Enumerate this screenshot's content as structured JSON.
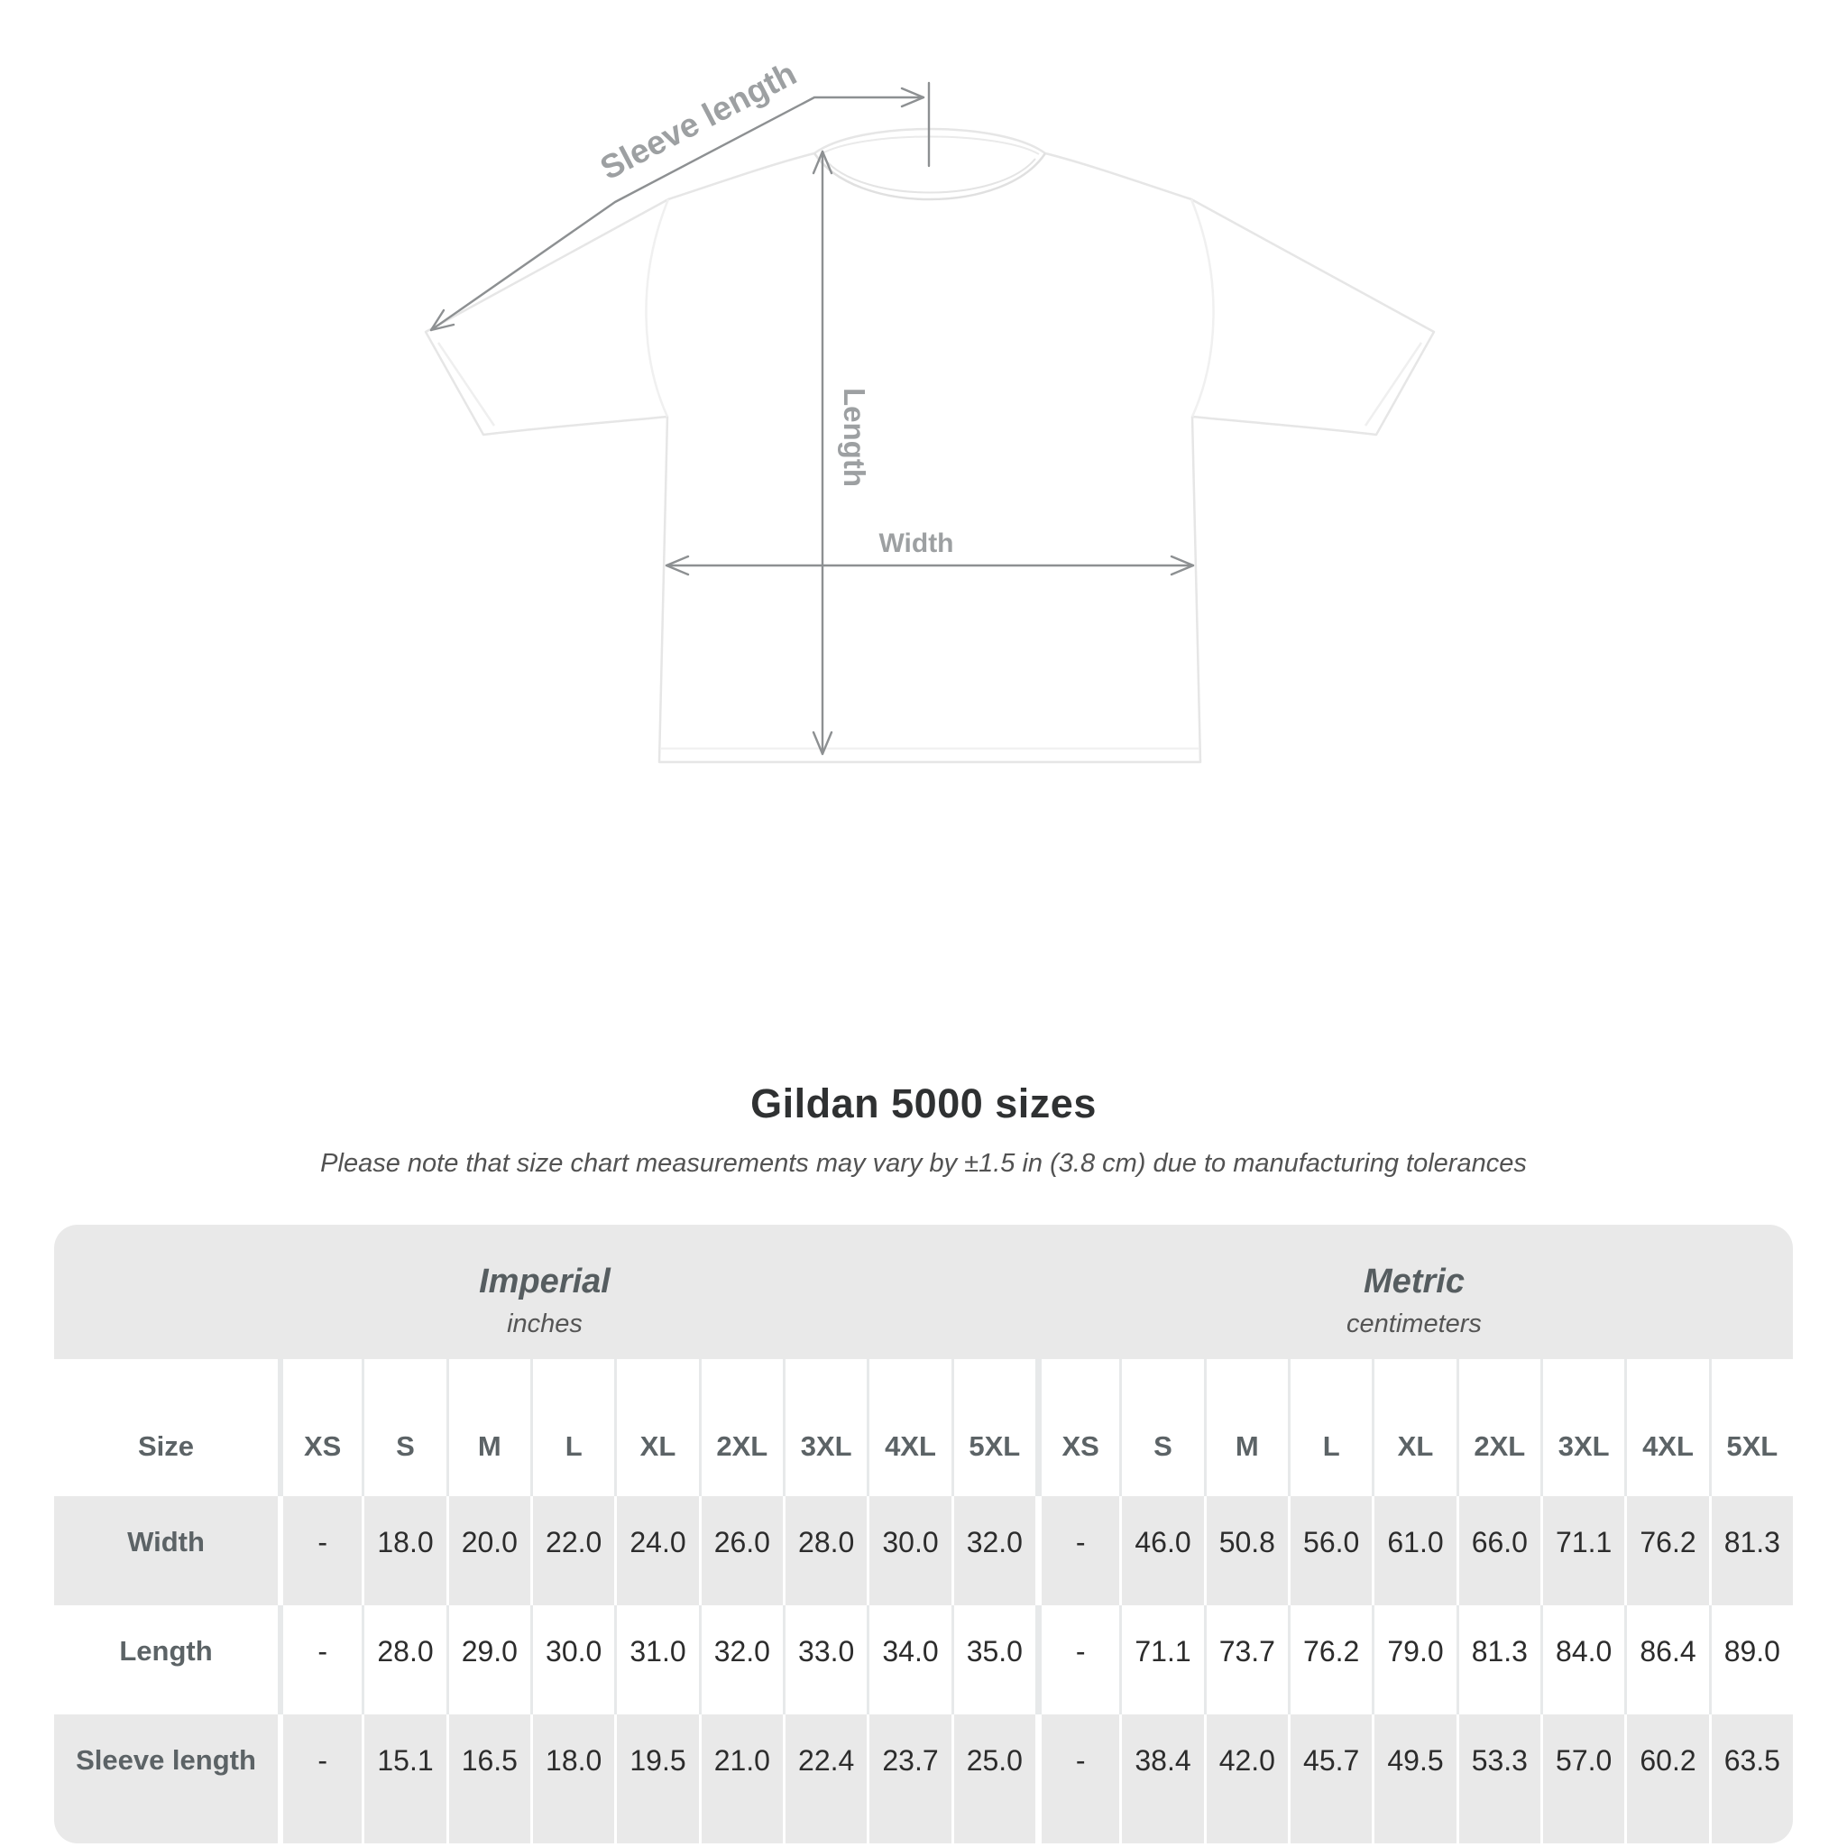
{
  "title": "Gildan 5000 sizes",
  "subtitle": "Please note that size chart measurements may vary by ±1.5 in (3.8 cm) due to manufacturing tolerances",
  "diagram": {
    "sleeve_length_label": "Sleeve length",
    "length_label": "Length",
    "width_label": "Width"
  },
  "table": {
    "size_column_header": "Size",
    "sections": [
      {
        "title": "Imperial",
        "subtitle": "inches"
      },
      {
        "title": "Metric",
        "subtitle": "centimeters"
      }
    ]
  },
  "colors": {
    "stripe_gray": "#e9e9e9",
    "table_label_text": "#5c6366",
    "value_text": "#2c2c2c",
    "diagram_line": "#8d9092",
    "diagram_label": "#9da0a2",
    "title_text": "#2f3132",
    "subtitle_text": "#525252"
  },
  "chart_data": {
    "type": "table",
    "title": "Gildan 5000 sizes",
    "subtitle": "Please note that size chart measurements may vary by ±1.5 in (3.8 cm) due to manufacturing tolerances",
    "sections": [
      "Imperial (inches)",
      "Metric (centimeters)"
    ],
    "columns": [
      "XS",
      "S",
      "M",
      "L",
      "XL",
      "2XL",
      "3XL",
      "4XL",
      "5XL"
    ],
    "rows": [
      {
        "label": "Width",
        "imperial": [
          "-",
          "18.0",
          "20.0",
          "22.0",
          "24.0",
          "26.0",
          "28.0",
          "30.0",
          "32.0"
        ],
        "metric": [
          "-",
          "46.0",
          "50.8",
          "56.0",
          "61.0",
          "66.0",
          "71.1",
          "76.2",
          "81.3"
        ]
      },
      {
        "label": "Length",
        "imperial": [
          "-",
          "28.0",
          "29.0",
          "30.0",
          "31.0",
          "32.0",
          "33.0",
          "34.0",
          "35.0"
        ],
        "metric": [
          "-",
          "71.1",
          "73.7",
          "76.2",
          "79.0",
          "81.3",
          "84.0",
          "86.4",
          "89.0"
        ]
      },
      {
        "label": "Sleeve length",
        "imperial": [
          "-",
          "15.1",
          "16.5",
          "18.0",
          "19.5",
          "21.0",
          "22.4",
          "23.7",
          "25.0"
        ],
        "metric": [
          "-",
          "38.4",
          "42.0",
          "45.7",
          "49.5",
          "53.3",
          "57.0",
          "60.2",
          "63.5"
        ]
      }
    ]
  }
}
